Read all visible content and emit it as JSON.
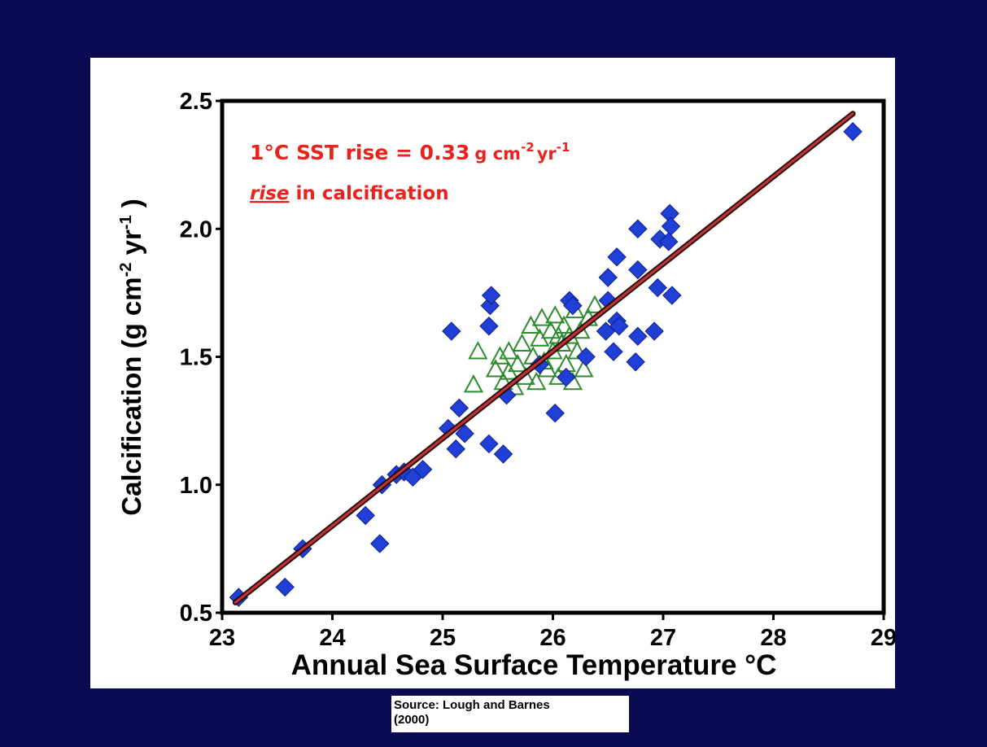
{
  "chart_data": {
    "type": "scatter",
    "title": "",
    "xlabel": "Annual Sea Surface Temperature °C",
    "ylabel_parts": [
      "Calcification (g cm",
      "-2",
      " yr",
      "-1",
      " )"
    ],
    "xlim": [
      23,
      29
    ],
    "ylim": [
      0.5,
      2.5
    ],
    "x_ticks": [
      "23",
      "24",
      "25",
      "26",
      "27",
      "28",
      "29"
    ],
    "y_ticks": [
      "0.5",
      "1.0",
      "1.5",
      "2.0",
      "2.5"
    ],
    "grid": false,
    "annotation": {
      "line1_prefix": "1°C SST rise = 0.33",
      "line1_unit_g": "g cm",
      "line1_sup1": "-2",
      "line1_unit_yr": "yr",
      "line1_sup2": "-1",
      "line2_emph": "rise",
      "line2_rest": " in calcification"
    },
    "trendline": {
      "x": [
        23.12,
        28.72
      ],
      "y": [
        0.54,
        2.45
      ]
    },
    "series": [
      {
        "marker": "diamond",
        "color": "#1f3fd6",
        "points": [
          [
            23.15,
            0.56
          ],
          [
            23.57,
            0.6
          ],
          [
            23.73,
            0.75
          ],
          [
            24.3,
            0.88
          ],
          [
            24.43,
            0.77
          ],
          [
            24.45,
            1.0
          ],
          [
            24.58,
            1.04
          ],
          [
            24.65,
            1.05
          ],
          [
            24.73,
            1.03
          ],
          [
            24.82,
            1.06
          ],
          [
            25.05,
            1.22
          ],
          [
            25.08,
            1.6
          ],
          [
            25.12,
            1.14
          ],
          [
            25.15,
            1.3
          ],
          [
            25.2,
            1.2
          ],
          [
            25.42,
            1.16
          ],
          [
            25.42,
            1.62
          ],
          [
            25.43,
            1.7
          ],
          [
            25.44,
            1.74
          ],
          [
            25.55,
            1.12
          ],
          [
            25.58,
            1.35
          ],
          [
            25.88,
            1.47
          ],
          [
            26.02,
            1.28
          ],
          [
            26.12,
            1.42
          ],
          [
            26.15,
            1.72
          ],
          [
            26.18,
            1.7
          ],
          [
            26.3,
            1.5
          ],
          [
            26.48,
            1.6
          ],
          [
            26.5,
            1.72
          ],
          [
            26.5,
            1.81
          ],
          [
            26.55,
            1.52
          ],
          [
            26.58,
            1.64
          ],
          [
            26.58,
            1.89
          ],
          [
            26.6,
            1.62
          ],
          [
            26.75,
            1.48
          ],
          [
            26.77,
            1.58
          ],
          [
            26.77,
            1.84
          ],
          [
            26.77,
            2.0
          ],
          [
            26.92,
            1.6
          ],
          [
            26.95,
            1.77
          ],
          [
            26.97,
            1.96
          ],
          [
            27.05,
            1.95
          ],
          [
            27.06,
            2.06
          ],
          [
            27.07,
            2.01
          ],
          [
            27.08,
            1.74
          ],
          [
            28.72,
            2.38
          ]
        ]
      },
      {
        "marker": "triangle",
        "color": "#2e8b2e",
        "points": [
          [
            25.28,
            1.39
          ],
          [
            25.32,
            1.52
          ],
          [
            25.48,
            1.45
          ],
          [
            25.52,
            1.5
          ],
          [
            25.55,
            1.4
          ],
          [
            25.6,
            1.52
          ],
          [
            25.65,
            1.38
          ],
          [
            25.68,
            1.47
          ],
          [
            25.72,
            1.55
          ],
          [
            25.75,
            1.42
          ],
          [
            25.8,
            1.62
          ],
          [
            25.82,
            1.5
          ],
          [
            25.85,
            1.4
          ],
          [
            25.88,
            1.57
          ],
          [
            25.9,
            1.65
          ],
          [
            25.95,
            1.45
          ],
          [
            25.98,
            1.6
          ],
          [
            26.0,
            1.52
          ],
          [
            26.02,
            1.66
          ],
          [
            26.05,
            1.42
          ],
          [
            26.08,
            1.55
          ],
          [
            26.1,
            1.62
          ],
          [
            26.12,
            1.47
          ],
          [
            26.15,
            1.58
          ],
          [
            26.18,
            1.4
          ],
          [
            26.2,
            1.68
          ],
          [
            26.22,
            1.52
          ],
          [
            26.25,
            1.6
          ],
          [
            26.28,
            1.45
          ],
          [
            26.32,
            1.65
          ],
          [
            26.38,
            1.7
          ],
          [
            25.6,
            1.44
          ],
          [
            25.92,
            1.48
          ],
          [
            26.05,
            1.58
          ]
        ]
      }
    ]
  },
  "source": {
    "line1": "Source: Lough and Barnes",
    "line2": "(2000)"
  }
}
